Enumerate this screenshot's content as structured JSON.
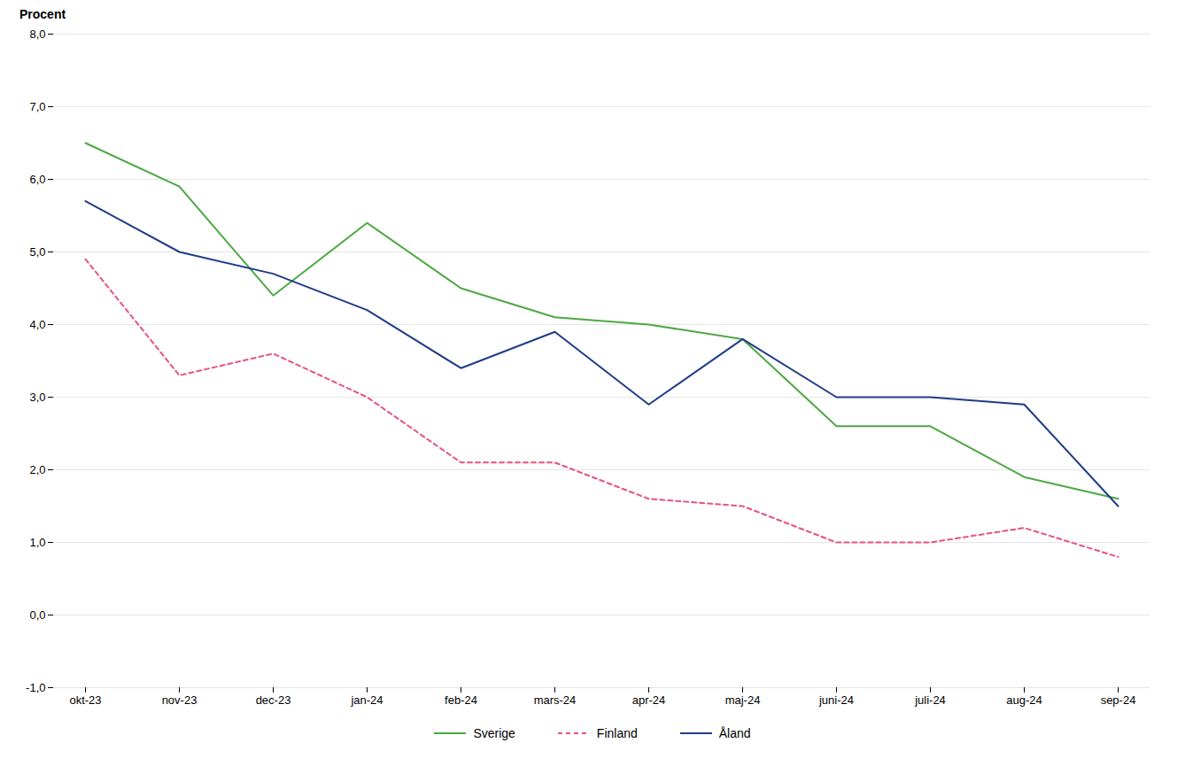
{
  "chart_data": {
    "type": "line",
    "y_label": "Procent",
    "categories": [
      "okt-23",
      "nov-23",
      "dec-23",
      "jan-24",
      "feb-24",
      "mars-24",
      "apr-24",
      "maj-24",
      "juni-24",
      "juli-24",
      "aug-24",
      "sep-24"
    ],
    "series": [
      {
        "name": "Sverige",
        "color": "#4DA843",
        "line_style": "solid",
        "values": [
          6.5,
          5.9,
          4.4,
          5.4,
          4.5,
          4.1,
          4.0,
          3.8,
          2.6,
          2.6,
          1.9,
          1.6
        ]
      },
      {
        "name": "Finland",
        "color": "#E8537A",
        "line_style": "dashed",
        "values": [
          4.9,
          3.3,
          3.6,
          3.0,
          2.1,
          2.1,
          1.6,
          1.5,
          1.0,
          1.0,
          1.2,
          0.8
        ]
      },
      {
        "name": "Åland",
        "color": "#1F3C88",
        "line_style": "solid",
        "values": [
          5.7,
          5.0,
          4.7,
          4.2,
          3.4,
          3.9,
          2.9,
          3.8,
          3.0,
          3.0,
          2.9,
          1.5
        ]
      }
    ],
    "ylim": [
      -1.0,
      8.0
    ],
    "yticks": [
      {
        "value": -1.0,
        "label": "-1,0"
      },
      {
        "value": 0.0,
        "label": "0,0"
      },
      {
        "value": 1.0,
        "label": "1,0"
      },
      {
        "value": 2.0,
        "label": "2,0"
      },
      {
        "value": 3.0,
        "label": "3,0"
      },
      {
        "value": 4.0,
        "label": "4,0"
      },
      {
        "value": 5.0,
        "label": "5,0"
      },
      {
        "value": 6.0,
        "label": "6,0"
      },
      {
        "value": 7.0,
        "label": "7,0"
      },
      {
        "value": 8.0,
        "label": "8,0"
      }
    ],
    "grid": true,
    "legend": "bottom"
  }
}
